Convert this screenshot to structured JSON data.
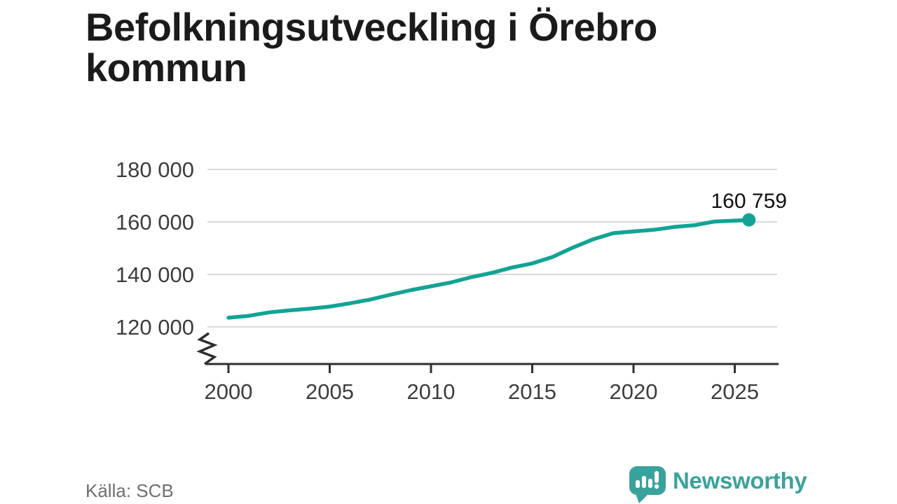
{
  "header": {
    "title": "Befolkningsutveckling i Örebro kommun"
  },
  "footer": {
    "source_label": "Källa: SCB",
    "brand_name": "Newsworthy",
    "brand_logo_icon": "bar-chart-speech-bubble-icon"
  },
  "colors": {
    "line": "#13a394",
    "point": "#13a394",
    "grid": "#d9d9d9",
    "axis": "#2f2f2f",
    "tick_text": "#3d3d3d",
    "title_text": "#1b1b1b",
    "end_label_text": "#111111",
    "source_text": "#6f6f6f",
    "brand": "#3aa29c",
    "background": "#ffffff"
  },
  "chart_data": {
    "type": "line",
    "title": "Befolkningsutveckling i Örebro kommun",
    "xlabel": "",
    "ylabel": "",
    "legend": "none",
    "grid": "horizontal-only",
    "axis_break_bottom_left": true,
    "xlim": [
      2000,
      2027
    ],
    "ylim": [
      120000,
      180000
    ],
    "x_ticks": [
      2000,
      2005,
      2010,
      2015,
      2020,
      2025
    ],
    "x_tick_labels": [
      "2000",
      "2005",
      "2010",
      "2015",
      "2020",
      "2025"
    ],
    "y_tick_values": [
      180000,
      160000,
      140000,
      120000
    ],
    "y_tick_labels": [
      "180 000",
      "160 000",
      "140 000",
      "120 000"
    ],
    "x": [
      2000,
      2001,
      2002,
      2003,
      2004,
      2005,
      2006,
      2007,
      2008,
      2009,
      2010,
      2011,
      2012,
      2013,
      2014,
      2015,
      2016,
      2017,
      2018,
      2019,
      2020,
      2021,
      2022,
      2023,
      2024,
      2025.7
    ],
    "values": [
      123503,
      124207,
      125520,
      126288,
      126940,
      127733,
      128977,
      130429,
      132277,
      134006,
      135460,
      136963,
      138952,
      140599,
      142618,
      144200,
      146631,
      150192,
      153367,
      155696,
      156381,
      156987,
      158057,
      158710,
      160140,
      160759
    ],
    "end_value": 160759,
    "end_label": "160 759",
    "source": "SCB"
  }
}
